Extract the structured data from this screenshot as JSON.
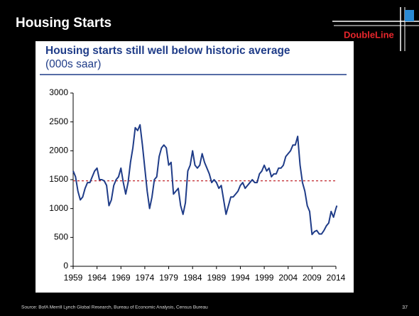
{
  "slide": {
    "title": "Housing Starts",
    "logo": "DoubleLine",
    "source": "Source: BofA Merrill Lynch Global Research, Bureau of Economic Analysis, Census Bureau",
    "page": "37"
  },
  "chart_data": {
    "type": "line",
    "title": "Housing starts still well below historic average",
    "subtitle": "(000s saar)",
    "x": [
      1959.0,
      1959.5,
      1960.0,
      1960.5,
      1961.0,
      1961.5,
      1962.0,
      1962.5,
      1963.0,
      1963.5,
      1964.0,
      1964.5,
      1965.0,
      1965.5,
      1966.0,
      1966.5,
      1967.0,
      1967.5,
      1968.0,
      1968.5,
      1969.0,
      1969.5,
      1970.0,
      1970.5,
      1971.0,
      1971.5,
      1972.0,
      1972.5,
      1973.0,
      1973.5,
      1974.0,
      1974.5,
      1975.0,
      1975.5,
      1976.0,
      1976.5,
      1977.0,
      1977.5,
      1978.0,
      1978.5,
      1979.0,
      1979.5,
      1980.0,
      1980.5,
      1981.0,
      1981.5,
      1982.0,
      1982.5,
      1983.0,
      1983.5,
      1984.0,
      1984.5,
      1985.0,
      1985.5,
      1986.0,
      1986.5,
      1987.0,
      1987.5,
      1988.0,
      1988.5,
      1989.0,
      1989.5,
      1990.0,
      1990.5,
      1991.0,
      1991.5,
      1992.0,
      1992.5,
      1993.0,
      1993.5,
      1994.0,
      1994.5,
      1995.0,
      1995.5,
      1996.0,
      1996.5,
      1997.0,
      1997.5,
      1998.0,
      1998.5,
      1999.0,
      1999.5,
      2000.0,
      2000.5,
      2001.0,
      2001.5,
      2002.0,
      2002.5,
      2003.0,
      2003.5,
      2004.0,
      2004.5,
      2005.0,
      2005.5,
      2006.0,
      2006.5,
      2007.0,
      2007.5,
      2008.0,
      2008.5,
      2009.0,
      2009.5,
      2010.0,
      2010.5,
      2011.0,
      2011.5,
      2012.0,
      2012.5,
      2013.0,
      2013.5,
      2014.0,
      2014.2
    ],
    "series": [
      {
        "name": "Housing starts",
        "color": "#1f3c88",
        "values": [
          1650,
          1550,
          1300,
          1150,
          1200,
          1350,
          1450,
          1450,
          1550,
          1650,
          1700,
          1500,
          1500,
          1480,
          1400,
          1050,
          1150,
          1400,
          1500,
          1550,
          1700,
          1450,
          1250,
          1450,
          1800,
          2050,
          2400,
          2350,
          2450,
          2100,
          1700,
          1300,
          1000,
          1200,
          1500,
          1550,
          1900,
          2050,
          2100,
          2050,
          1750,
          1800,
          1250,
          1300,
          1350,
          1050,
          900,
          1100,
          1650,
          1750,
          2000,
          1750,
          1700,
          1750,
          1950,
          1800,
          1700,
          1600,
          1450,
          1500,
          1450,
          1350,
          1400,
          1150,
          900,
          1050,
          1200,
          1200,
          1250,
          1300,
          1400,
          1450,
          1350,
          1400,
          1450,
          1500,
          1450,
          1450,
          1600,
          1650,
          1750,
          1650,
          1700,
          1550,
          1600,
          1600,
          1700,
          1700,
          1750,
          1900,
          1950,
          2000,
          2100,
          2100,
          2250,
          1750,
          1450,
          1300,
          1050,
          950,
          550,
          600,
          620,
          560,
          560,
          620,
          700,
          750,
          950,
          850,
          1000,
          1050
        ]
      }
    ],
    "reference_line": {
      "value": 1480,
      "color": "#c0272d"
    },
    "xlim": [
      1959,
      2014
    ],
    "xticks": [
      1959,
      1964,
      1969,
      1974,
      1979,
      1984,
      1989,
      1994,
      1999,
      2004,
      2009,
      2014
    ],
    "ylim": [
      0,
      3000
    ],
    "yticks": [
      0,
      500,
      1000,
      1500,
      2000,
      2500,
      3000
    ],
    "grid": false
  }
}
